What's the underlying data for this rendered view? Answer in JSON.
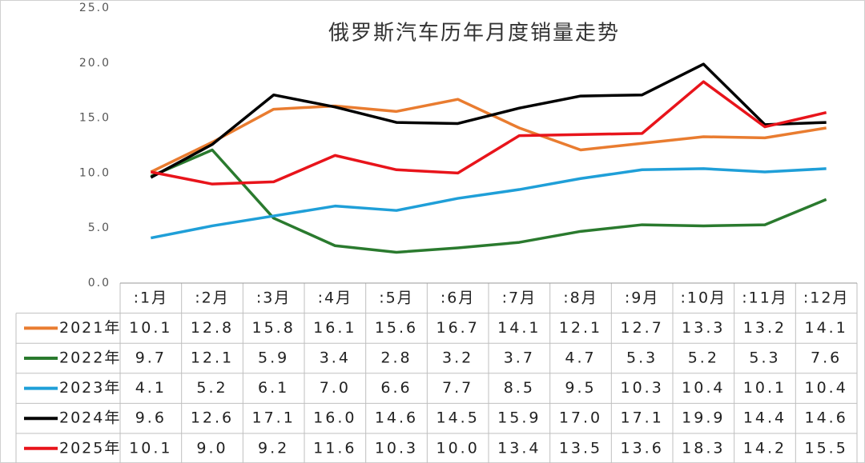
{
  "chart_data": {
    "type": "line",
    "title": "俄罗斯汽车历年月度销量走势",
    "categories": [
      ":1月",
      ":2月",
      ":3月",
      ":4月",
      ":5月",
      ":6月",
      ":7月",
      ":8月",
      ":9月",
      ":10月",
      ":11月",
      ":12月"
    ],
    "series": [
      {
        "name": "2021年",
        "color": "#e97c30",
        "values": [
          10.1,
          12.8,
          15.8,
          16.1,
          15.6,
          16.7,
          14.1,
          12.1,
          12.7,
          13.3,
          13.2,
          14.1
        ],
        "value_labels": [
          "10.1",
          "12.8",
          "15.8",
          "16.1",
          "15.6",
          "16.7",
          "14.1",
          "12.1",
          "12.7",
          "13.3",
          "13.2",
          "14.1"
        ]
      },
      {
        "name": "2022年",
        "color": "#2a7a2e",
        "values": [
          9.7,
          12.1,
          5.9,
          3.4,
          2.8,
          3.2,
          3.7,
          4.7,
          5.3,
          5.2,
          5.3,
          7.6
        ],
        "value_labels": [
          "9.7",
          "12.1",
          "5.9",
          "3.4",
          "2.8",
          "3.2",
          "3.7",
          "4.7",
          "5.3",
          "5.2",
          "5.3",
          "7.6"
        ]
      },
      {
        "name": "2023年",
        "color": "#1f9fd8",
        "values": [
          4.1,
          5.2,
          6.1,
          7.0,
          6.6,
          7.7,
          8.5,
          9.5,
          10.3,
          10.4,
          10.1,
          10.4
        ],
        "value_labels": [
          "4.1",
          "5.2",
          "6.1",
          "7.0",
          "6.6",
          "7.7",
          "8.5",
          "9.5",
          "10.3",
          "10.4",
          "10.1",
          "10.4"
        ]
      },
      {
        "name": "2024年",
        "color": "#000000",
        "values": [
          9.6,
          12.6,
          17.1,
          16.0,
          14.6,
          14.5,
          15.9,
          17.0,
          17.1,
          19.9,
          14.4,
          14.6
        ],
        "value_labels": [
          "9.6",
          "12.6",
          "17.1",
          "16.0",
          "14.6",
          "14.5",
          "15.9",
          "17.0",
          "17.1",
          "19.9",
          "14.4",
          "14.6"
        ]
      },
      {
        "name": "2025年",
        "color": "#e8141b",
        "values": [
          10.1,
          9.0,
          9.2,
          11.6,
          10.3,
          10.0,
          13.4,
          13.5,
          13.6,
          18.3,
          14.2,
          15.5
        ],
        "value_labels": [
          "10.1",
          "9.0",
          "9.2",
          "11.6",
          "10.3",
          "10.0",
          "13.4",
          "13.5",
          "13.6",
          "18.3",
          "14.2",
          "15.5"
        ]
      }
    ],
    "ylim": [
      0,
      25
    ],
    "yticks": [
      {
        "value": 0,
        "label": "0.0"
      },
      {
        "value": 5,
        "label": "5.0"
      },
      {
        "value": 10,
        "label": "10.0"
      },
      {
        "value": 15,
        "label": "15.0"
      },
      {
        "value": 20,
        "label": "20.0"
      },
      {
        "value": 25,
        "label": "25.0"
      }
    ],
    "grid": false
  }
}
